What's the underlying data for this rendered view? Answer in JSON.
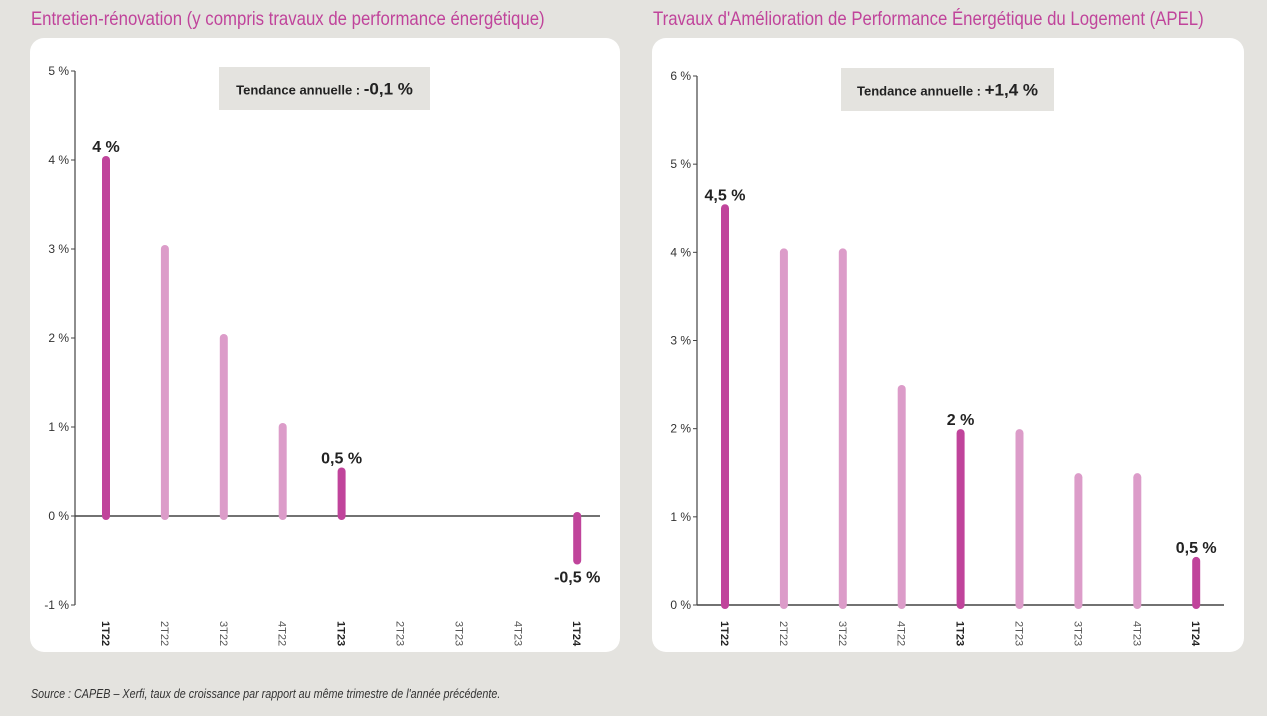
{
  "colors": {
    "highlight": "#c0449b",
    "normal": "#dc9cc9",
    "title": "#c0449b",
    "axis": "#444444",
    "trend_box": "#e4e3df"
  },
  "source": "Source : CAPEB – Xerfi, taux de croissance par rapport au même trimestre de l'année précédente.",
  "chart_data": [
    {
      "type": "bar",
      "title": "Entretien-rénovation (y compris travaux de performance énergétique)",
      "trend_label": "Tendance annuelle : ",
      "trend_value": "-0,1 %",
      "categories": [
        "1T22",
        "2T22",
        "3T22",
        "4T22",
        "1T23",
        "2T23",
        "3T23",
        "4T23",
        "1T24"
      ],
      "values": [
        4,
        3,
        2,
        1,
        0.5,
        0,
        0,
        0,
        -0.5
      ],
      "highlight": [
        true,
        false,
        false,
        false,
        true,
        false,
        false,
        false,
        true
      ],
      "data_labels": [
        "4 %",
        "",
        "",
        "",
        "0,5 %",
        "",
        "",
        "",
        "-0,5 %"
      ],
      "yticks": [
        -1,
        0,
        1,
        2,
        3,
        4,
        5
      ],
      "ytick_labels": [
        "-1 %",
        "0 %",
        "1 %",
        "2 %",
        "3 %",
        "4 %",
        "5 %"
      ],
      "ylim": [
        -1,
        5
      ]
    },
    {
      "type": "bar",
      "title": "Travaux d'Amélioration de Performance Énergétique du Logement (APEL)",
      "trend_label": "Tendance annuelle : ",
      "trend_value": "+1,4 %",
      "categories": [
        "1T22",
        "2T22",
        "3T22",
        "4T22",
        "1T23",
        "2T23",
        "3T23",
        "4T23",
        "1T24"
      ],
      "values": [
        4.5,
        4,
        4,
        2.45,
        1.95,
        1.95,
        1.45,
        1.45,
        0.5
      ],
      "highlight": [
        true,
        false,
        false,
        false,
        true,
        false,
        false,
        false,
        true
      ],
      "data_labels": [
        "4,5 %",
        "",
        "",
        "",
        "2 %",
        "",
        "",
        "",
        "0,5 %"
      ],
      "yticks": [
        0,
        1,
        2,
        3,
        4,
        5,
        6
      ],
      "ytick_labels": [
        "0 %",
        "1 %",
        "2 %",
        "3 %",
        "4 %",
        "5 %",
        "6 %"
      ],
      "ylim": [
        0,
        6
      ]
    }
  ]
}
